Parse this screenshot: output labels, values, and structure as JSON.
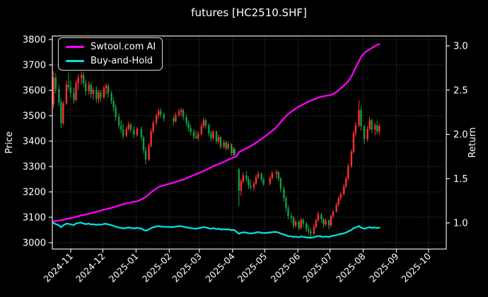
{
  "title": "futures [HC2510.SHF]",
  "legend": {
    "items": [
      {
        "label": "Swtool.com AI",
        "color": "#ff00ff"
      },
      {
        "label": "Buy-and-Hold",
        "color": "#00e1e1"
      }
    ]
  },
  "colors": {
    "background": "#000000",
    "text": "#ffffff",
    "grid": "#555555",
    "spine": "#ffffff",
    "candle_up": "#ff2e2e",
    "candle_down": "#0fa040",
    "ai_line": "#ff00ff",
    "bh_line": "#00e1e1"
  },
  "chart_data": {
    "type": "candlestick+line",
    "title": "futures [HC2510.SHF]",
    "grid": "dotted",
    "legend_position": "upper-left",
    "x_axis": {
      "epoch": "2024-10-15",
      "ticks": [
        {
          "label": "2024-11",
          "d": 17
        },
        {
          "label": "2024-12",
          "d": 47
        },
        {
          "label": "2025-01",
          "d": 78
        },
        {
          "label": "2025-02",
          "d": 109
        },
        {
          "label": "2025-03",
          "d": 137
        },
        {
          "label": "2025-04",
          "d": 168
        },
        {
          "label": "2025-05",
          "d": 198
        },
        {
          "label": "2025-06",
          "d": 229
        },
        {
          "label": "2025-07",
          "d": 259
        },
        {
          "label": "2025-08",
          "d": 290
        },
        {
          "label": "2025-09",
          "d": 321
        },
        {
          "label": "2025-10",
          "d": 351
        }
      ]
    },
    "y_left": {
      "label": "Price",
      "ticks": [
        3000,
        3100,
        3200,
        3300,
        3400,
        3500,
        3600,
        3700,
        3800
      ],
      "lim": [
        2975,
        3814
      ]
    },
    "y_right": {
      "label": "Return",
      "ticks": [
        1.0,
        1.5,
        2.0,
        2.5,
        3.0
      ],
      "lim": [
        0.705,
        3.112
      ]
    },
    "candles_format": [
      "day_offset",
      "open",
      "high",
      "low",
      "close"
    ],
    "candles": [
      [
        1,
        3545,
        3675,
        3530,
        3650
      ],
      [
        3,
        3650,
        3668,
        3588,
        3605
      ],
      [
        6,
        3605,
        3622,
        3538,
        3552
      ],
      [
        8,
        3552,
        3565,
        3452,
        3470
      ],
      [
        10,
        3470,
        3558,
        3462,
        3548
      ],
      [
        13,
        3548,
        3638,
        3542,
        3622
      ],
      [
        15,
        3622,
        3670,
        3598,
        3612
      ],
      [
        17,
        3612,
        3638,
        3572,
        3590
      ],
      [
        20,
        3590,
        3612,
        3548,
        3562
      ],
      [
        22,
        3562,
        3640,
        3556,
        3628
      ],
      [
        24,
        3628,
        3662,
        3602,
        3648
      ],
      [
        27,
        3648,
        3675,
        3622,
        3660
      ],
      [
        29,
        3660,
        3672,
        3612,
        3628
      ],
      [
        31,
        3628,
        3642,
        3580,
        3598
      ],
      [
        34,
        3598,
        3635,
        3582,
        3622
      ],
      [
        36,
        3622,
        3632,
        3570,
        3586
      ],
      [
        38,
        3586,
        3612,
        3562,
        3600
      ],
      [
        41,
        3600,
        3615,
        3552,
        3566
      ],
      [
        43,
        3566,
        3602,
        3550,
        3592
      ],
      [
        45,
        3592,
        3602,
        3556,
        3572
      ],
      [
        48,
        3572,
        3618,
        3565,
        3608
      ],
      [
        50,
        3608,
        3628,
        3582,
        3618
      ],
      [
        52,
        3618,
        3626,
        3572,
        3588
      ],
      [
        55,
        3588,
        3598,
        3545,
        3558
      ],
      [
        57,
        3558,
        3572,
        3518,
        3532
      ],
      [
        59,
        3532,
        3545,
        3480,
        3495
      ],
      [
        62,
        3495,
        3508,
        3448,
        3462
      ],
      [
        64,
        3462,
        3482,
        3432,
        3445
      ],
      [
        66,
        3445,
        3468,
        3408,
        3422
      ],
      [
        69,
        3422,
        3458,
        3415,
        3448
      ],
      [
        71,
        3448,
        3478,
        3438,
        3465
      ],
      [
        73,
        3465,
        3472,
        3432,
        3445
      ],
      [
        76,
        3445,
        3458,
        3412,
        3425
      ],
      [
        79,
        3425,
        3455,
        3418,
        3448
      ],
      [
        83,
        3448,
        3458,
        3402,
        3415
      ],
      [
        85,
        3415,
        3422,
        3352,
        3365
      ],
      [
        87,
        3365,
        3378,
        3308,
        3328
      ],
      [
        90,
        3328,
        3392,
        3322,
        3382
      ],
      [
        92,
        3382,
        3448,
        3375,
        3438
      ],
      [
        94,
        3438,
        3480,
        3430,
        3472
      ],
      [
        97,
        3472,
        3510,
        3462,
        3502
      ],
      [
        99,
        3502,
        3528,
        3488,
        3518
      ],
      [
        101,
        3518,
        3530,
        3492,
        3505
      ],
      [
        104,
        3505,
        3512,
        3478,
        3490
      ],
      [
        113,
        3490,
        3502,
        3462,
        3478
      ],
      [
        115,
        3478,
        3512,
        3472,
        3502
      ],
      [
        118,
        3502,
        3525,
        3495,
        3515
      ],
      [
        120,
        3515,
        3532,
        3498,
        3522
      ],
      [
        122,
        3522,
        3528,
        3482,
        3495
      ],
      [
        125,
        3495,
        3505,
        3458,
        3470
      ],
      [
        127,
        3470,
        3482,
        3438,
        3452
      ],
      [
        129,
        3452,
        3465,
        3422,
        3435
      ],
      [
        132,
        3435,
        3448,
        3405,
        3418
      ],
      [
        134,
        3418,
        3442,
        3408,
        3412
      ],
      [
        136,
        3412,
        3438,
        3402,
        3428
      ],
      [
        139,
        3428,
        3468,
        3422,
        3458
      ],
      [
        141,
        3458,
        3492,
        3450,
        3482
      ],
      [
        143,
        3482,
        3490,
        3448,
        3462
      ],
      [
        146,
        3462,
        3470,
        3418,
        3430
      ],
      [
        148,
        3430,
        3442,
        3398,
        3412
      ],
      [
        150,
        3412,
        3445,
        3405,
        3438
      ],
      [
        153,
        3438,
        3442,
        3388,
        3398
      ],
      [
        155,
        3398,
        3425,
        3390,
        3415
      ],
      [
        157,
        3415,
        3420,
        3368,
        3378
      ],
      [
        160,
        3378,
        3405,
        3370,
        3395
      ],
      [
        162,
        3395,
        3402,
        3362,
        3372
      ],
      [
        164,
        3372,
        3398,
        3365,
        3388
      ],
      [
        167,
        3388,
        3392,
        3342,
        3352
      ],
      [
        169,
        3352,
        3378,
        3345,
        3368
      ],
      [
        170,
        3368,
        3372,
        3335,
        3345
      ],
      [
        174,
        3288,
        3295,
        3145,
        3205
      ],
      [
        176,
        3205,
        3252,
        3185,
        3242
      ],
      [
        178,
        3242,
        3278,
        3232,
        3265
      ],
      [
        181,
        3265,
        3282,
        3238,
        3250
      ],
      [
        183,
        3250,
        3262,
        3212,
        3225
      ],
      [
        185,
        3225,
        3248,
        3208,
        3218
      ],
      [
        188,
        3218,
        3242,
        3205,
        3232
      ],
      [
        190,
        3232,
        3268,
        3228,
        3258
      ],
      [
        192,
        3258,
        3282,
        3250,
        3272
      ],
      [
        195,
        3272,
        3278,
        3238,
        3248
      ],
      [
        197,
        3248,
        3258,
        3222,
        3232
      ],
      [
        203,
        3232,
        3262,
        3225,
        3255
      ],
      [
        205,
        3255,
        3282,
        3248,
        3272
      ],
      [
        209,
        3272,
        3288,
        3252,
        3278
      ],
      [
        211,
        3278,
        3282,
        3242,
        3252
      ],
      [
        213,
        3252,
        3258,
        3198,
        3212
      ],
      [
        216,
        3212,
        3222,
        3162,
        3175
      ],
      [
        218,
        3175,
        3185,
        3122,
        3135
      ],
      [
        220,
        3135,
        3148,
        3092,
        3105
      ],
      [
        223,
        3105,
        3118,
        3078,
        3098
      ],
      [
        225,
        3098,
        3105,
        3055,
        3068
      ],
      [
        227,
        3068,
        3092,
        3060,
        3082
      ],
      [
        230,
        3082,
        3088,
        3048,
        3058
      ],
      [
        232,
        3058,
        3098,
        3052,
        3090
      ],
      [
        234,
        3090,
        3096,
        3062,
        3075
      ],
      [
        237,
        3075,
        3082,
        3042,
        3052
      ],
      [
        239,
        3052,
        3068,
        3032,
        3045
      ],
      [
        241,
        3045,
        3058,
        3021,
        3035
      ],
      [
        244,
        3035,
        3072,
        3028,
        3062
      ],
      [
        246,
        3062,
        3095,
        3055,
        3088
      ],
      [
        248,
        3088,
        3122,
        3082,
        3112
      ],
      [
        251,
        3112,
        3118,
        3078,
        3092
      ],
      [
        253,
        3092,
        3098,
        3058,
        3072
      ],
      [
        255,
        3072,
        3095,
        3065,
        3088
      ],
      [
        258,
        3088,
        3092,
        3052,
        3068
      ],
      [
        260,
        3068,
        3112,
        3062,
        3105
      ],
      [
        262,
        3105,
        3128,
        3098,
        3122
      ],
      [
        265,
        3122,
        3158,
        3118,
        3150
      ],
      [
        267,
        3150,
        3182,
        3142,
        3175
      ],
      [
        269,
        3175,
        3198,
        3165,
        3192
      ],
      [
        272,
        3192,
        3232,
        3185,
        3222
      ],
      [
        274,
        3222,
        3262,
        3215,
        3252
      ],
      [
        276,
        3252,
        3312,
        3245,
        3302
      ],
      [
        279,
        3302,
        3368,
        3295,
        3358
      ],
      [
        281,
        3358,
        3442,
        3350,
        3432
      ],
      [
        283,
        3432,
        3475,
        3418,
        3462
      ],
      [
        286,
        3462,
        3560,
        3455,
        3522
      ],
      [
        288,
        3522,
        3538,
        3442,
        3458
      ],
      [
        291,
        3458,
        3465,
        3388,
        3408
      ],
      [
        294,
        3408,
        3458,
        3398,
        3448
      ],
      [
        296,
        3448,
        3495,
        3442,
        3482
      ],
      [
        298,
        3482,
        3488,
        3432,
        3445
      ],
      [
        301,
        3445,
        3472,
        3422,
        3462
      ],
      [
        303,
        3462,
        3478,
        3428,
        3438
      ],
      [
        305,
        3438,
        3468,
        3425,
        3458
      ]
    ],
    "series": [
      {
        "name": "Swtool.com AI",
        "axis": "right",
        "color": "#ff00ff",
        "points": [
          [
            1,
            1.02
          ],
          [
            4,
            1.025
          ],
          [
            8,
            1.03
          ],
          [
            13,
            1.045
          ],
          [
            17,
            1.055
          ],
          [
            22,
            1.07
          ],
          [
            27,
            1.085
          ],
          [
            31,
            1.095
          ],
          [
            36,
            1.11
          ],
          [
            41,
            1.125
          ],
          [
            45,
            1.14
          ],
          [
            50,
            1.155
          ],
          [
            55,
            1.17
          ],
          [
            59,
            1.185
          ],
          [
            64,
            1.205
          ],
          [
            69,
            1.22
          ],
          [
            73,
            1.23
          ],
          [
            79,
            1.245
          ],
          [
            83,
            1.265
          ],
          [
            87,
            1.295
          ],
          [
            90,
            1.325
          ],
          [
            94,
            1.365
          ],
          [
            99,
            1.405
          ],
          [
            104,
            1.425
          ],
          [
            113,
            1.455
          ],
          [
            118,
            1.475
          ],
          [
            122,
            1.49
          ],
          [
            127,
            1.515
          ],
          [
            132,
            1.54
          ],
          [
            136,
            1.56
          ],
          [
            141,
            1.585
          ],
          [
            146,
            1.615
          ],
          [
            150,
            1.64
          ],
          [
            155,
            1.665
          ],
          [
            160,
            1.69
          ],
          [
            164,
            1.715
          ],
          [
            169,
            1.74
          ],
          [
            172,
            1.755
          ],
          [
            174,
            1.8
          ],
          [
            178,
            1.825
          ],
          [
            183,
            1.855
          ],
          [
            188,
            1.89
          ],
          [
            192,
            1.925
          ],
          [
            197,
            1.965
          ],
          [
            203,
            2.02
          ],
          [
            209,
            2.08
          ],
          [
            213,
            2.14
          ],
          [
            216,
            2.18
          ],
          [
            220,
            2.23
          ],
          [
            225,
            2.275
          ],
          [
            230,
            2.315
          ],
          [
            234,
            2.34
          ],
          [
            239,
            2.37
          ],
          [
            244,
            2.395
          ],
          [
            248,
            2.415
          ],
          [
            251,
            2.425
          ],
          [
            255,
            2.435
          ],
          [
            258,
            2.44
          ],
          [
            262,
            2.455
          ],
          [
            265,
            2.48
          ],
          [
            267,
            2.5
          ],
          [
            269,
            2.52
          ],
          [
            272,
            2.55
          ],
          [
            274,
            2.575
          ],
          [
            276,
            2.6
          ],
          [
            279,
            2.655
          ],
          [
            281,
            2.705
          ],
          [
            283,
            2.755
          ],
          [
            286,
            2.825
          ],
          [
            288,
            2.875
          ],
          [
            291,
            2.92
          ],
          [
            294,
            2.945
          ],
          [
            296,
            2.962
          ],
          [
            298,
            2.975
          ],
          [
            301,
            3.0
          ],
          [
            303,
            3.01
          ],
          [
            305,
            3.02
          ]
        ]
      },
      {
        "name": "Buy-and-Hold",
        "axis": "right",
        "color": "#00e1e1",
        "derived_from": "candle_close / base",
        "base": 3650
      }
    ]
  }
}
